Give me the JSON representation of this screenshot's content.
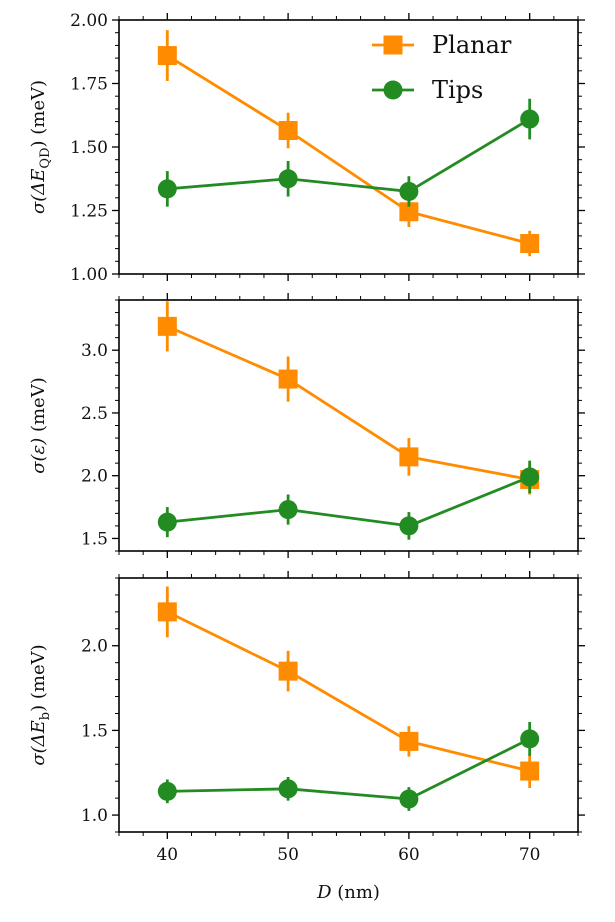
{
  "chart_data": [
    {
      "type": "line",
      "panel": "top",
      "ylabel_parts": {
        "prefix": "σ(ΔE",
        "sub": "QD",
        "suffix": ") (meV)"
      },
      "ylim": [
        1.0,
        2.0
      ],
      "yticks": [
        1.0,
        1.25,
        1.5,
        1.75,
        2.0
      ],
      "ytick_labels": [
        "1.00",
        "1.25",
        "1.50",
        "1.75",
        "2.00"
      ],
      "x": [
        40,
        50,
        60,
        70
      ],
      "series": [
        {
          "name": "Planar",
          "marker": "square",
          "values": [
            1.86,
            1.565,
            1.245,
            1.12
          ],
          "errors": [
            0.1,
            0.07,
            0.06,
            0.05
          ]
        },
        {
          "name": "Tips",
          "marker": "circle",
          "values": [
            1.335,
            1.375,
            1.325,
            1.61
          ],
          "errors": [
            0.07,
            0.07,
            0.06,
            0.08
          ]
        }
      ]
    },
    {
      "type": "line",
      "panel": "middle",
      "ylabel_parts": {
        "prefix": "σ(ε)",
        "sub": "",
        "suffix": " (meV)"
      },
      "ylim": [
        1.4,
        3.4
      ],
      "yticks": [
        1.5,
        2.0,
        2.5,
        3.0
      ],
      "ytick_labels": [
        "1.5",
        "2.0",
        "2.5",
        "3.0"
      ],
      "x": [
        40,
        50,
        60,
        70
      ],
      "series": [
        {
          "name": "Planar",
          "marker": "square",
          "values": [
            3.19,
            2.77,
            2.15,
            1.97
          ],
          "errors": [
            0.2,
            0.18,
            0.15,
            0.12
          ]
        },
        {
          "name": "Tips",
          "marker": "circle",
          "values": [
            1.63,
            1.73,
            1.6,
            1.99
          ],
          "errors": [
            0.12,
            0.12,
            0.11,
            0.13
          ]
        }
      ]
    },
    {
      "type": "line",
      "panel": "bottom",
      "ylabel_parts": {
        "prefix": "σ(ΔE",
        "sub": "b",
        "suffix": ") (meV)"
      },
      "ylim": [
        0.9,
        2.4
      ],
      "yticks": [
        1.0,
        1.5,
        2.0
      ],
      "ytick_labels": [
        "1.0",
        "1.5",
        "2.0"
      ],
      "x": [
        40,
        50,
        60,
        70
      ],
      "series": [
        {
          "name": "Planar",
          "marker": "square",
          "values": [
            2.2,
            1.85,
            1.435,
            1.26
          ],
          "errors": [
            0.15,
            0.12,
            0.09,
            0.1
          ]
        },
        {
          "name": "Tips",
          "marker": "circle",
          "values": [
            1.14,
            1.155,
            1.095,
            1.45
          ],
          "errors": [
            0.07,
            0.07,
            0.07,
            0.1
          ]
        }
      ]
    }
  ],
  "shared": {
    "xlim": [
      36,
      74
    ],
    "xticks": [
      40,
      50,
      60,
      70
    ],
    "xtick_labels": [
      "40",
      "50",
      "60",
      "70"
    ],
    "xlabel_var": "D",
    "xlabel_unit": " (nm)",
    "legend": [
      "Planar",
      "Tips"
    ],
    "colors": {
      "Planar": "#ff8c00",
      "Tips": "#228b22"
    }
  }
}
